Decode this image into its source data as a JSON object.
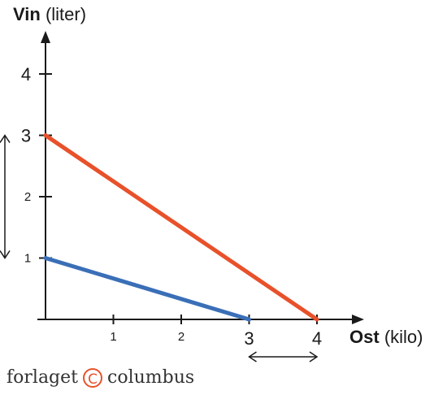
{
  "chart_data": {
    "type": "line",
    "xlabel": {
      "bold": "Ost",
      "rest": "(kilo)"
    },
    "ylabel": {
      "bold": "Vin",
      "rest": "(liter)"
    },
    "xlim": [
      0,
      4.6
    ],
    "ylim": [
      0,
      4.5
    ],
    "x_ticks": [
      {
        "value": 1,
        "label": "1",
        "size": "small"
      },
      {
        "value": 2,
        "label": "2",
        "size": "small"
      },
      {
        "value": 3,
        "label": "3",
        "size": "large"
      },
      {
        "value": 4,
        "label": "4",
        "size": "large"
      }
    ],
    "y_ticks": [
      {
        "value": 1,
        "label": "1",
        "size": "small"
      },
      {
        "value": 2,
        "label": "2",
        "size": "small"
      },
      {
        "value": 3,
        "label": "3",
        "size": "large"
      },
      {
        "value": 4,
        "label": "4",
        "size": "large"
      }
    ],
    "series": [
      {
        "color": "#e8512a",
        "points": [
          [
            0,
            3
          ],
          [
            4,
            0
          ]
        ]
      },
      {
        "color": "#3a6fb7",
        "points": [
          [
            0,
            1
          ],
          [
            3,
            0
          ]
        ]
      }
    ],
    "annotations": [
      {
        "type": "vertical-double-arrow",
        "from": 1,
        "to": 3
      },
      {
        "type": "horizontal-double-arrow",
        "from": 3,
        "to": 4
      }
    ],
    "grid": false
  },
  "brand": {
    "text_left": "forlaget",
    "symbol": "C",
    "text_right": "columbus",
    "color": "#e8512a"
  }
}
